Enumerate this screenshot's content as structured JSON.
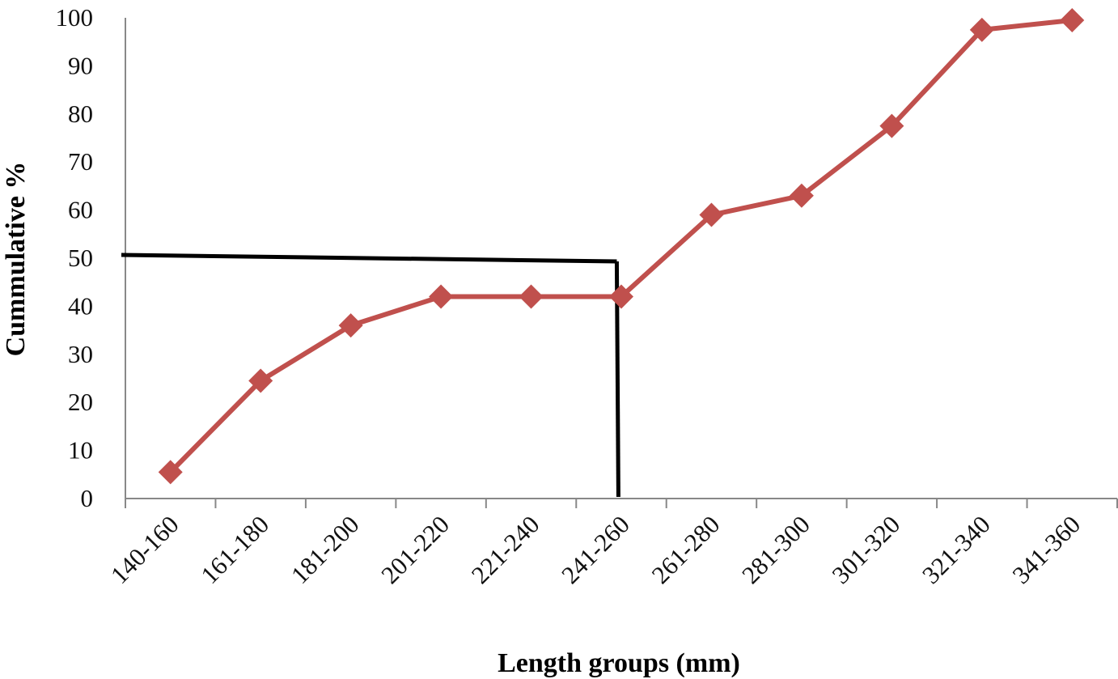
{
  "chart_data": {
    "type": "line",
    "title": "",
    "xlabel": "Length groups (mm)",
    "ylabel": "Cummulative  %",
    "categories": [
      "140-160",
      "161-180",
      "181-200",
      "201-220",
      "221-240",
      "241-260",
      "261-280",
      "281-300",
      "301-320",
      "321-340",
      "341-360"
    ],
    "series": [
      {
        "values": [
          5.5,
          24.5,
          36,
          42,
          42,
          42,
          59,
          63,
          77.5,
          97.5,
          99.5
        ]
      }
    ],
    "ylim": [
      0,
      100
    ],
    "yticks": [
      0,
      10,
      20,
      30,
      40,
      50,
      60,
      70,
      80,
      90,
      100
    ],
    "reference_point": {
      "x_category_position": 5.45,
      "y": 50
    },
    "grid": false,
    "legend": "none",
    "colors": {
      "series": "#c0504d",
      "reference_lines": "#000000",
      "axis": "#888888"
    }
  }
}
